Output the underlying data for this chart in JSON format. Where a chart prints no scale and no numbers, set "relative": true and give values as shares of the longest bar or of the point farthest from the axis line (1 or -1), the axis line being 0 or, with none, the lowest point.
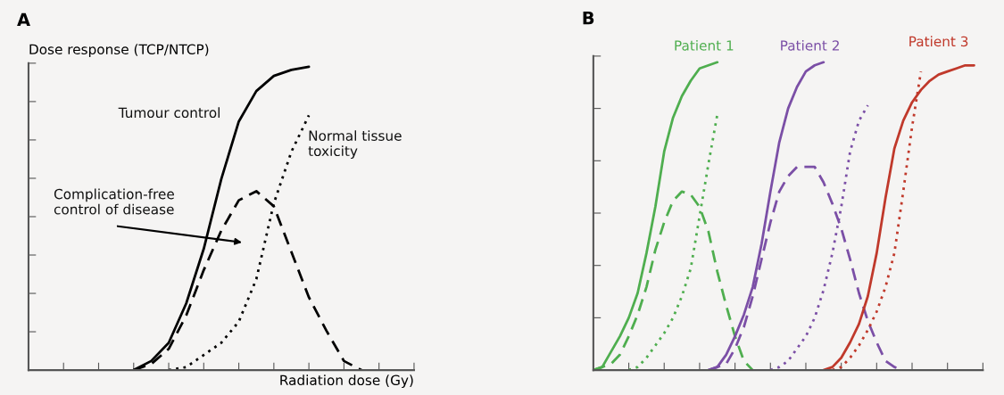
{
  "chart_data": [
    {
      "type": "line",
      "relative": true,
      "title": "A",
      "xlabel": "Radiation dose (Gy)",
      "ylabel": "Dose response (TCP/NTCP)",
      "categories": [
        null,
        null,
        null,
        null,
        null,
        null,
        null,
        null,
        null,
        null,
        null,
        null,
        null,
        null,
        null,
        null,
        null,
        null,
        null,
        null,
        null,
        null,
        null
      ],
      "series": [
        {
          "name": "Tumour control",
          "color": "#000000",
          "line_style": "solid",
          "values": [
            null,
            null,
            null,
            null,
            null,
            null,
            0,
            0.03,
            0.09,
            0.22,
            0.4,
            0.63,
            0.82,
            0.92,
            0.97,
            0.99,
            1,
            null,
            null,
            null,
            null,
            null,
            null
          ]
        },
        {
          "name": "Complication-free\ncontrol of disease",
          "color": "#000000",
          "line_style": "dashed",
          "values": [
            null,
            null,
            null,
            null,
            null,
            null,
            0,
            0.02,
            0.07,
            0.18,
            0.33,
            0.46,
            0.56,
            0.59,
            0.54,
            0.39,
            0.24,
            0.13,
            0.03,
            0,
            null,
            null,
            null
          ]
        },
        {
          "name": "Normal tissue\ntoxicity",
          "color": "#000000",
          "line_style": "dotted",
          "values": [
            null,
            null,
            null,
            null,
            null,
            null,
            null,
            null,
            0,
            0.01,
            0.05,
            0.09,
            0.16,
            0.3,
            0.55,
            0.72,
            0.84,
            null,
            null,
            null,
            null,
            null,
            null
          ]
        }
      ]
    },
    {
      "type": "line",
      "relative": true,
      "title": "B",
      "categories": [
        null,
        null,
        null,
        null,
        null,
        null,
        null,
        null,
        null,
        null,
        null,
        null,
        null,
        null,
        null,
        null,
        null,
        null,
        null,
        null,
        null,
        null,
        null,
        null,
        null,
        null,
        null,
        null,
        null,
        null,
        null,
        null,
        null,
        null,
        null,
        null,
        null,
        null,
        null,
        null,
        null,
        null,
        null,
        null,
        null
      ],
      "series": [
        {
          "name": "Patient 1",
          "color": "#4fae4f",
          "line_style": "solid",
          "values": [
            0,
            0.01,
            0.06,
            0.11,
            0.17,
            0.25,
            0.38,
            0.53,
            0.71,
            0.82,
            0.89,
            0.94,
            0.98,
            0.99,
            1,
            null,
            null,
            null,
            null,
            null,
            null,
            null,
            null,
            null,
            null,
            null,
            null,
            null,
            null,
            null,
            null,
            null,
            null,
            null,
            null,
            null,
            null,
            null,
            null,
            null,
            null,
            null,
            null,
            null,
            null
          ]
        },
        {
          "color": "#4fae4f",
          "line_style": "dashed",
          "values": [
            0,
            0.01,
            0.02,
            0.05,
            0.11,
            0.18,
            0.27,
            0.39,
            0.48,
            0.55,
            0.58,
            0.57,
            0.53,
            0.45,
            0.32,
            0.21,
            0.11,
            0.03,
            0,
            null,
            null,
            null,
            null,
            null,
            null,
            null,
            null,
            null,
            null,
            null,
            null,
            null,
            null,
            null,
            null,
            null,
            null,
            null,
            null,
            null,
            null,
            null,
            null,
            null,
            null
          ]
        },
        {
          "color": "#4fae4f",
          "line_style": "dotted",
          "values": [
            null,
            null,
            null,
            null,
            0,
            0.01,
            0.04,
            0.08,
            0.12,
            0.17,
            0.24,
            0.33,
            0.5,
            0.67,
            0.83,
            null,
            null,
            null,
            null,
            null,
            null,
            null,
            null,
            null,
            null,
            null,
            null,
            null,
            null,
            null,
            null,
            null,
            null,
            null,
            null,
            null,
            null,
            null,
            null,
            null,
            null,
            null,
            null,
            null,
            null
          ]
        },
        {
          "name": "Patient 2",
          "color": "#7b4fa6",
          "line_style": "solid",
          "values": [
            null,
            null,
            null,
            null,
            null,
            null,
            null,
            null,
            null,
            null,
            null,
            null,
            null,
            0,
            0.01,
            0.05,
            0.11,
            0.18,
            0.27,
            0.41,
            0.58,
            0.74,
            0.85,
            0.92,
            0.97,
            0.99,
            1,
            null,
            null,
            null,
            null,
            null,
            null,
            null,
            null,
            null,
            null,
            null,
            null,
            null,
            null,
            null,
            null,
            null,
            null
          ]
        },
        {
          "color": "#7b4fa6",
          "line_style": "dashed",
          "values": [
            null,
            null,
            null,
            null,
            null,
            null,
            null,
            null,
            null,
            null,
            null,
            null,
            null,
            0,
            0.01,
            0.02,
            0.07,
            0.14,
            0.24,
            0.36,
            0.48,
            0.58,
            0.63,
            0.66,
            0.66,
            0.66,
            0.61,
            0.54,
            0.46,
            0.36,
            0.25,
            0.16,
            0.09,
            0.03,
            0.01,
            0,
            null,
            null,
            null,
            null,
            null,
            null,
            null,
            null,
            null
          ]
        },
        {
          "color": "#7b4fa6",
          "line_style": "dotted",
          "values": [
            null,
            null,
            null,
            null,
            null,
            null,
            null,
            null,
            null,
            null,
            null,
            null,
            null,
            null,
            null,
            null,
            null,
            null,
            null,
            null,
            0,
            0.01,
            0.03,
            0.07,
            0.11,
            0.17,
            0.26,
            0.38,
            0.53,
            0.71,
            0.81,
            0.86,
            null,
            null,
            null,
            null,
            null,
            null,
            null,
            null,
            null,
            null,
            null,
            null,
            null
          ]
        },
        {
          "name": "Patient 3",
          "color": "#c0392b",
          "line_style": "solid",
          "values": [
            null,
            null,
            null,
            null,
            null,
            null,
            null,
            null,
            null,
            null,
            null,
            null,
            null,
            null,
            null,
            null,
            null,
            null,
            null,
            null,
            null,
            null,
            null,
            null,
            null,
            null,
            0,
            0.01,
            0.04,
            0.09,
            0.15,
            0.24,
            0.38,
            0.56,
            0.72,
            0.81,
            0.87,
            0.91,
            0.94,
            0.96,
            0.97,
            0.98,
            0.99,
            0.99,
            null
          ]
        },
        {
          "color": "#c0392b",
          "line_style": "dotted",
          "values": [
            null,
            null,
            null,
            null,
            null,
            null,
            null,
            null,
            null,
            null,
            null,
            null,
            null,
            null,
            null,
            null,
            null,
            null,
            null,
            null,
            null,
            null,
            null,
            null,
            null,
            null,
            null,
            0,
            0.01,
            0.04,
            0.08,
            0.13,
            0.19,
            0.27,
            0.38,
            0.58,
            0.79,
            0.97,
            null,
            null,
            null,
            null,
            null,
            null,
            null
          ]
        }
      ]
    }
  ]
}
